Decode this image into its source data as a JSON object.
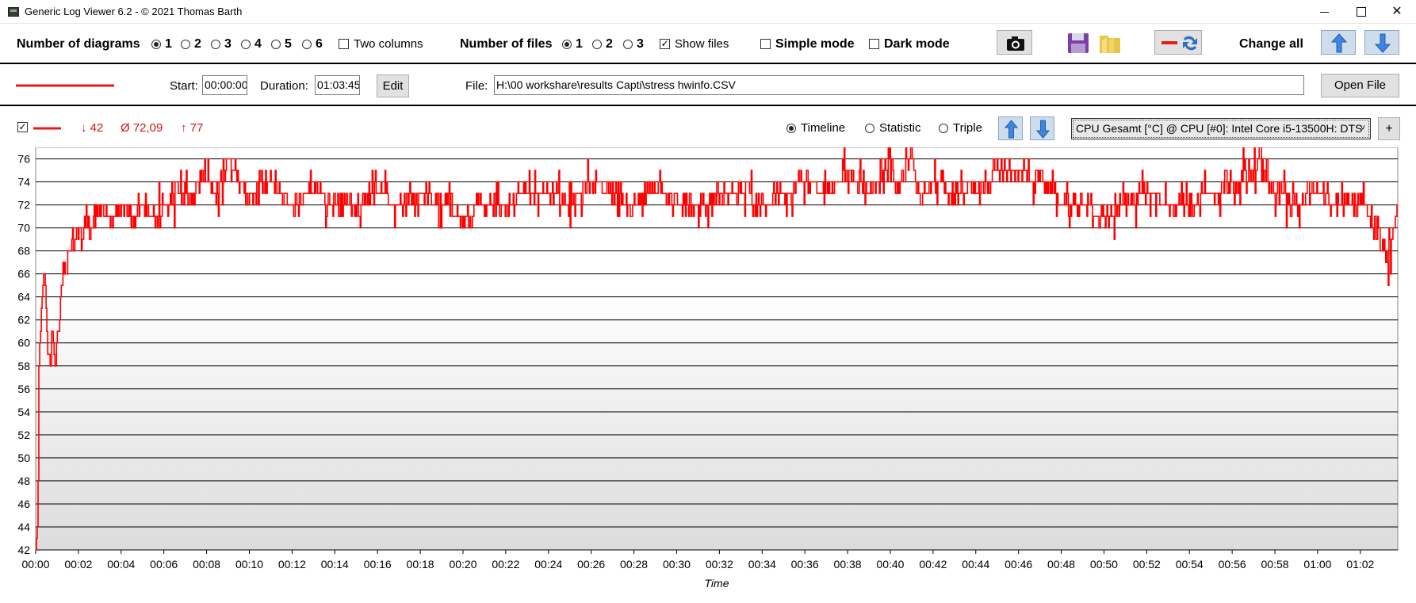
{
  "window": {
    "title": "Generic Log Viewer 6.2 - © 2021 Thomas Barth"
  },
  "toolbar": {
    "diagrams_label": "Number of diagrams",
    "diagram_options": [
      "1",
      "2",
      "3",
      "4",
      "5",
      "6"
    ],
    "diagram_selected": "1",
    "two_columns_label": "Two columns",
    "two_columns_checked": false,
    "files_label": "Number of files",
    "file_options": [
      "1",
      "2",
      "3"
    ],
    "file_selected": "1",
    "show_files_label": "Show files",
    "show_files_checked": true,
    "simple_mode_label": "Simple mode",
    "simple_mode_checked": false,
    "dark_mode_label": "Dark mode",
    "dark_mode_checked": false,
    "change_all_label": "Change all",
    "icons": [
      "camera-icon",
      "save-icon",
      "folder-icon",
      "line-swap-icon",
      "arrow-up-icon",
      "arrow-down-icon"
    ]
  },
  "file_bar": {
    "start_label": "Start:",
    "start_value": "00:00:00",
    "duration_label": "Duration:",
    "duration_value": "01:03:45",
    "edit_label": "Edit",
    "file_label": "File:",
    "file_path": "H:\\00 workshare\\results Capti\\stress hwinfo.CSV",
    "open_file_label": "Open File",
    "line_color": "#e51c1c"
  },
  "chart_header": {
    "visible_checked": true,
    "min_text": "↓ 42",
    "avg_text": "Ø 72,09",
    "max_text": "↑ 77",
    "view_options": [
      "Timeline",
      "Statistic",
      "Triple"
    ],
    "view_selected": "Timeline",
    "sensor_select": "CPU Gesamt [°C] @ CPU [#0]: Intel Core i5-13500H: DTS",
    "add_label": "+"
  },
  "chart_data": {
    "type": "line",
    "xlabel": "Time",
    "ylabel": "",
    "ylim": [
      42,
      77
    ],
    "yticks": [
      42,
      44,
      46,
      48,
      50,
      52,
      54,
      56,
      58,
      60,
      62,
      64,
      66,
      68,
      70,
      72,
      74,
      76
    ],
    "xticks": [
      "00:00",
      "00:02",
      "00:04",
      "00:06",
      "00:08",
      "00:10",
      "00:12",
      "00:14",
      "00:16",
      "00:18",
      "00:20",
      "00:22",
      "00:24",
      "00:26",
      "00:28",
      "00:30",
      "00:32",
      "00:34",
      "00:36",
      "00:38",
      "00:40",
      "00:42",
      "00:44",
      "00:46",
      "00:48",
      "00:50",
      "00:52",
      "00:54",
      "00:56",
      "00:58",
      "01:00",
      "01:02"
    ],
    "x_max_min": 63.75,
    "grid": true,
    "line_color": "#ff0000",
    "series": [
      {
        "values_min": [
          0,
          0.1,
          0.15,
          0.3,
          0.4,
          0.5,
          0.6,
          0.7,
          0.8,
          0.9,
          1.0,
          1.1,
          1.2,
          1.4,
          1.6,
          1.8,
          2.0,
          2.2,
          2.4,
          2.6,
          2.8,
          3.0,
          3.3,
          3.6,
          4.0,
          4.5,
          5.0,
          5.5,
          6.0,
          7.0,
          8.0,
          8.5,
          9.0,
          9.5,
          10,
          11,
          12,
          13,
          14,
          15,
          16,
          17,
          18,
          19,
          20,
          21,
          22,
          23,
          24,
          25,
          26,
          27,
          28,
          29,
          30,
          31,
          32,
          33,
          34,
          35,
          36,
          37,
          38,
          39,
          40,
          40.3,
          41,
          41.3,
          42,
          43,
          44,
          45,
          46,
          47,
          48,
          49,
          50,
          51,
          52,
          53,
          54,
          55,
          56,
          57,
          57.3,
          58,
          59,
          60,
          61,
          62,
          62.5,
          62.8,
          63.0,
          63.2,
          63.4,
          63.6,
          63.75
        ],
        "values": [
          42,
          45,
          58,
          64,
          67,
          62,
          59,
          58,
          61,
          58,
          60,
          62,
          65,
          67,
          68,
          69,
          70,
          69,
          71,
          70,
          71,
          72,
          71,
          71,
          72,
          71,
          72,
          71,
          72,
          73,
          74,
          73,
          76,
          74,
          73,
          74,
          72,
          73,
          72,
          72,
          73,
          72,
          73,
          72,
          71,
          72,
          72,
          73,
          73,
          72,
          74,
          73,
          72,
          73,
          72,
          72,
          73,
          73,
          72,
          73,
          74,
          73,
          75,
          73,
          76,
          73,
          77,
          72,
          74,
          73,
          73,
          75,
          75,
          74,
          72,
          72,
          71,
          72,
          73,
          72,
          72,
          73,
          74,
          75,
          76,
          73,
          72,
          73,
          72,
          72,
          71,
          69,
          68,
          67,
          68,
          71,
          72
        ]
      }
    ]
  }
}
